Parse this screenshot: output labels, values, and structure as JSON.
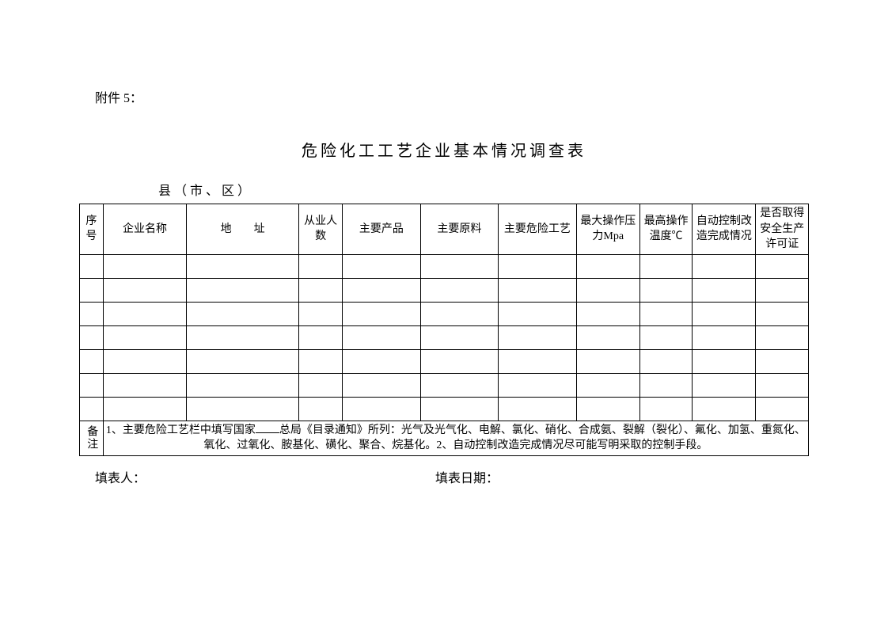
{
  "attachment_label": "附件 5：",
  "title": "危险化工工艺企业基本情况调查表",
  "region_label": "县（市、区）",
  "table": {
    "columns": [
      "序号",
      "企业名称",
      "地　　址",
      "从业人数",
      "主要产品",
      "主要原料",
      "主要危险工艺",
      "最大操作压力Mpa",
      "最高操作温度℃",
      "自动控制改造完成情况",
      "是否取得安全生产许可证"
    ],
    "rows": [
      [
        "",
        "",
        "",
        "",
        "",
        "",
        "",
        "",
        "",
        "",
        ""
      ],
      [
        "",
        "",
        "",
        "",
        "",
        "",
        "",
        "",
        "",
        "",
        ""
      ],
      [
        "",
        "",
        "",
        "",
        "",
        "",
        "",
        "",
        "",
        "",
        ""
      ],
      [
        "",
        "",
        "",
        "",
        "",
        "",
        "",
        "",
        "",
        "",
        ""
      ],
      [
        "",
        "",
        "",
        "",
        "",
        "",
        "",
        "",
        "",
        "",
        ""
      ],
      [
        "",
        "",
        "",
        "",
        "",
        "",
        "",
        "",
        "",
        "",
        ""
      ],
      [
        "",
        "",
        "",
        "",
        "",
        "",
        "",
        "",
        "",
        "",
        ""
      ]
    ]
  },
  "notes_label": "备注",
  "notes_prefix": "1、主要危险工艺栏中填写国家",
  "notes_suffix": "总局《目录通知》所列：光气及光气化、电解、氯化、硝化、合成氨、裂解（裂化）、氟化、加氢、重氮化、氧化、过氧化、胺基化、磺化、聚合、烷基化。2、自动控制改造完成情况尽可能写明采取的控制手段。",
  "footer": {
    "filler_label": "填表人：",
    "date_label": "填表日期："
  },
  "colors": {
    "text": "#000000",
    "border": "#000000",
    "background": "#ffffff"
  }
}
